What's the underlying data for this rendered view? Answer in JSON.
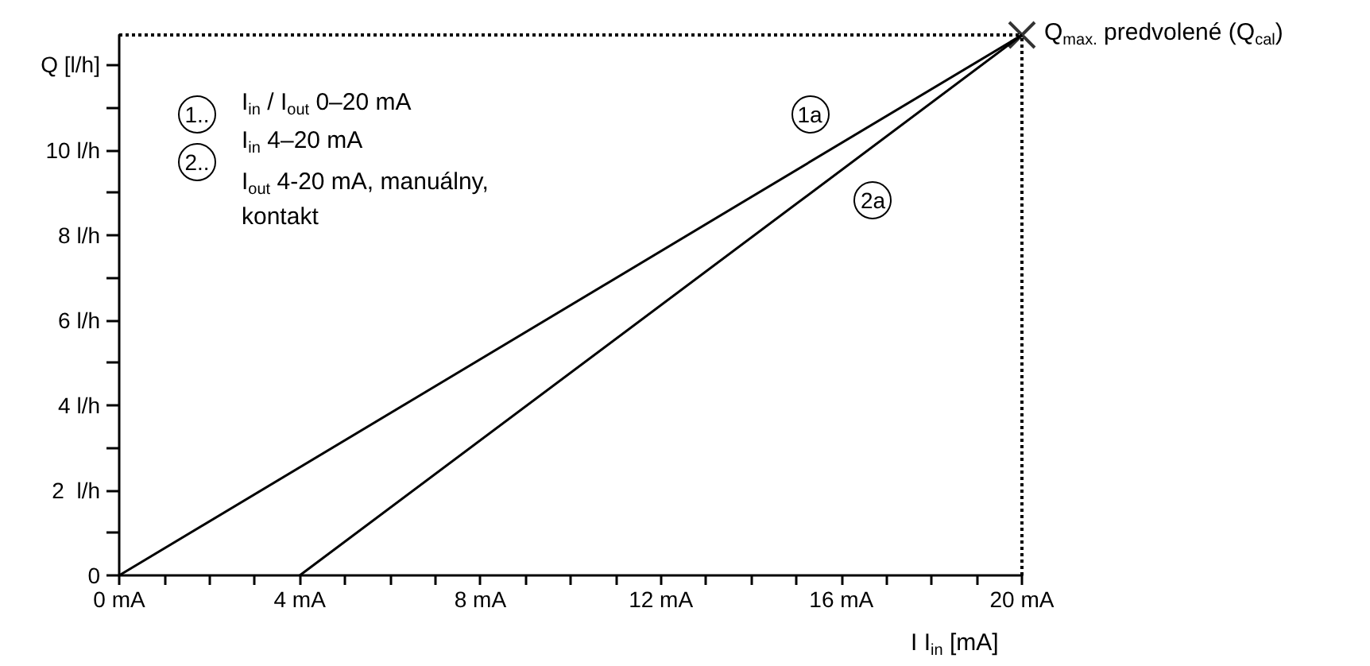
{
  "chart_data": {
    "type": "line",
    "xlabel": "I  I$_{in}$ [mA]",
    "series": [
      {
        "color": "#000000",
        "x": [
          0,
          20
        ],
        "values": [
          0,
          12.7
        ]
      },
      {
        "color": "#000000",
        "x": [
          4,
          20
        ],
        "values": [
          0,
          12.7
        ]
      },
      {
        "type": "scatter",
        "marker": "cross",
        "color": "#000000",
        "x": [
          20
        ],
        "values": [
          12.7
        ]
      }
    ],
    "marker": "none",
    "line_style": "solid",
    "grid": false,
    "xlim": [
      0,
      20
    ],
    "xticks": [
      {
        "value": 0,
        "label": "0 mA"
      },
      {
        "value": 1,
        "label": null
      },
      {
        "value": 2,
        "label": null
      },
      {
        "value": 3,
        "label": null
      },
      {
        "value": 4,
        "label": "4 mA"
      },
      {
        "value": 5,
        "label": null
      },
      {
        "value": 6,
        "label": null
      },
      {
        "value": 7,
        "label": null
      },
      {
        "value": 8,
        "label": "8 mA"
      },
      {
        "value": 9,
        "label": null
      },
      {
        "value": 10,
        "label": null
      },
      {
        "value": 11,
        "label": null
      },
      {
        "value": 12,
        "label": "12 mA"
      },
      {
        "value": 13,
        "label": null
      },
      {
        "value": 14,
        "label": null
      },
      {
        "value": 15,
        "label": null
      },
      {
        "value": 16,
        "label": "16 mA"
      },
      {
        "value": 17,
        "label": null
      },
      {
        "value": 18,
        "label": null
      },
      {
        "value": 19,
        "label": null
      },
      {
        "value": 20,
        "label": "20 mA"
      }
    ],
    "ylim": [
      0,
      12.7
    ],
    "yticks": [
      0,
      {
        "value": 1,
        "label": null
      },
      {
        "value": 2,
        "label": "2  l/h"
      },
      {
        "value": 3,
        "label": null
      },
      {
        "value": 4,
        "label": "4 l/h"
      },
      {
        "value": 5,
        "label": null
      },
      {
        "value": 6,
        "label": "6 l/h"
      },
      {
        "value": 7,
        "label": null
      },
      {
        "value": 8,
        "label": "8 l/h"
      },
      {
        "value": 9,
        "label": null
      },
      {
        "value": 10,
        "label": "10 l/h"
      },
      {
        "value": 11,
        "label": null
      },
      {
        "value": 12,
        "label": "Q [l/h]"
      }
    ],
    "ref_lines": [
      {
        "axis": "y",
        "value": 12.7,
        "line_style": "dotted",
        "color": "#000000"
      },
      {
        "axis": "x",
        "value": 20,
        "line_style": "dotted",
        "color": "#000000"
      }
    ],
    "annotations": [
      "1..",
      "I$_{in}$ / I$_{out}$ 0–20 mA",
      "2..",
      "I$_{in}$ 4–20 mA",
      "I$_{out}$ 4-20 mA, manuálny, kontakt",
      {
        "text": "1a",
        "x": 15.3,
        "y": 10.85
      },
      {
        "text": "2a",
        "x": 16.7,
        "y": 8.8
      },
      {
        "text": "Q$_{max.}$ predvolené (Q$_{cal}$)",
        "x": 20,
        "y": 12.7
      }
    ]
  }
}
